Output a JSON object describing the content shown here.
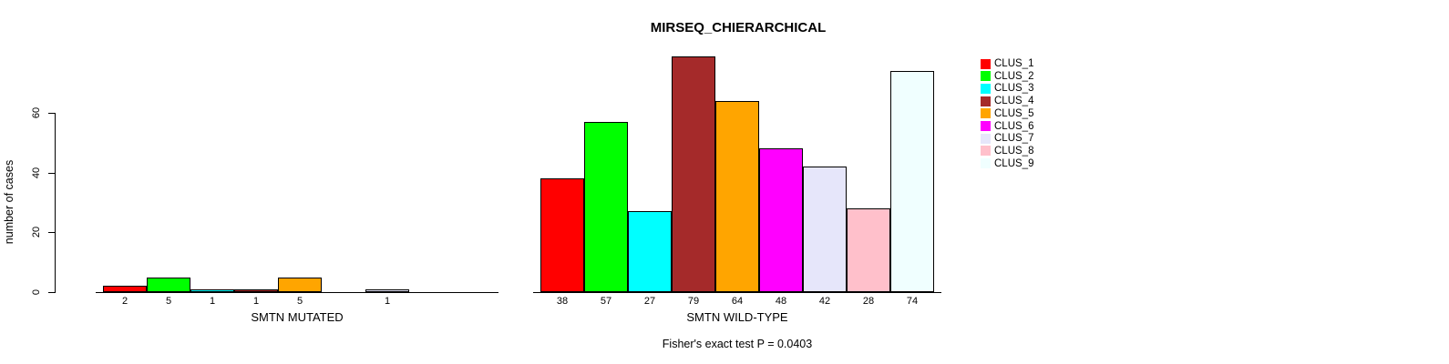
{
  "figure": {
    "title": "MIRSEQ_CHIERARCHICAL",
    "ylabel": "number of cases",
    "footer": "Fisher's exact test P = 0.0403",
    "background": "#ffffff",
    "axis_color": "#000000"
  },
  "legend": {
    "position": "top-right",
    "items": [
      {
        "label": "CLUS_1",
        "color": "#FF0000"
      },
      {
        "label": "CLUS_2",
        "color": "#00FF00"
      },
      {
        "label": "CLUS_3",
        "color": "#00FFFF"
      },
      {
        "label": "CLUS_4",
        "color": "#A52A2A"
      },
      {
        "label": "CLUS_5",
        "color": "#FFA500"
      },
      {
        "label": "CLUS_6",
        "color": "#FF00FF"
      },
      {
        "label": "CLUS_7",
        "color": "#E6E6FA"
      },
      {
        "label": "CLUS_8",
        "color": "#FFC0CB"
      },
      {
        "label": "CLUS_9",
        "color": "#F0FFFF"
      }
    ]
  },
  "chart_data": [
    {
      "type": "bar",
      "title": "MIRSEQ_CHIERARCHICAL",
      "xlabel": "SMTN MUTATED",
      "ylabel": "number of cases",
      "categories": [
        "CLUS_1",
        "CLUS_2",
        "CLUS_3",
        "CLUS_4",
        "CLUS_5",
        "CLUS_6",
        "CLUS_7",
        "CLUS_8",
        "CLUS_9"
      ],
      "values": [
        2,
        5,
        1,
        1,
        5,
        0,
        1,
        0,
        0
      ],
      "x_tick_labels": [
        "2",
        "5",
        "1",
        "1",
        "5",
        "",
        "1",
        "",
        ""
      ],
      "colors": [
        "#FF0000",
        "#00FF00",
        "#00FFFF",
        "#A52A2A",
        "#FFA500",
        "#FF00FF",
        "#E6E6FA",
        "#FFC0CB",
        "#F0FFFF"
      ],
      "yticks": [
        0,
        20,
        40,
        60
      ],
      "ylim": [
        0,
        80
      ],
      "grid": false,
      "legend_position": "right"
    },
    {
      "type": "bar",
      "title": "MIRSEQ_CHIERARCHICAL",
      "xlabel": "SMTN WILD-TYPE",
      "ylabel": "number of cases",
      "categories": [
        "CLUS_1",
        "CLUS_2",
        "CLUS_3",
        "CLUS_4",
        "CLUS_5",
        "CLUS_6",
        "CLUS_7",
        "CLUS_8",
        "CLUS_9"
      ],
      "values": [
        38,
        57,
        27,
        79,
        64,
        48,
        42,
        28,
        74
      ],
      "x_tick_labels": [
        "38",
        "57",
        "27",
        "79",
        "64",
        "48",
        "42",
        "28",
        "74"
      ],
      "colors": [
        "#FF0000",
        "#00FF00",
        "#00FFFF",
        "#A52A2A",
        "#FFA500",
        "#FF00FF",
        "#E6E6FA",
        "#FFC0CB",
        "#F0FFFF"
      ],
      "yticks": [
        0,
        20,
        40,
        60
      ],
      "ylim": [
        0,
        80
      ],
      "grid": false,
      "legend_position": "right"
    }
  ]
}
